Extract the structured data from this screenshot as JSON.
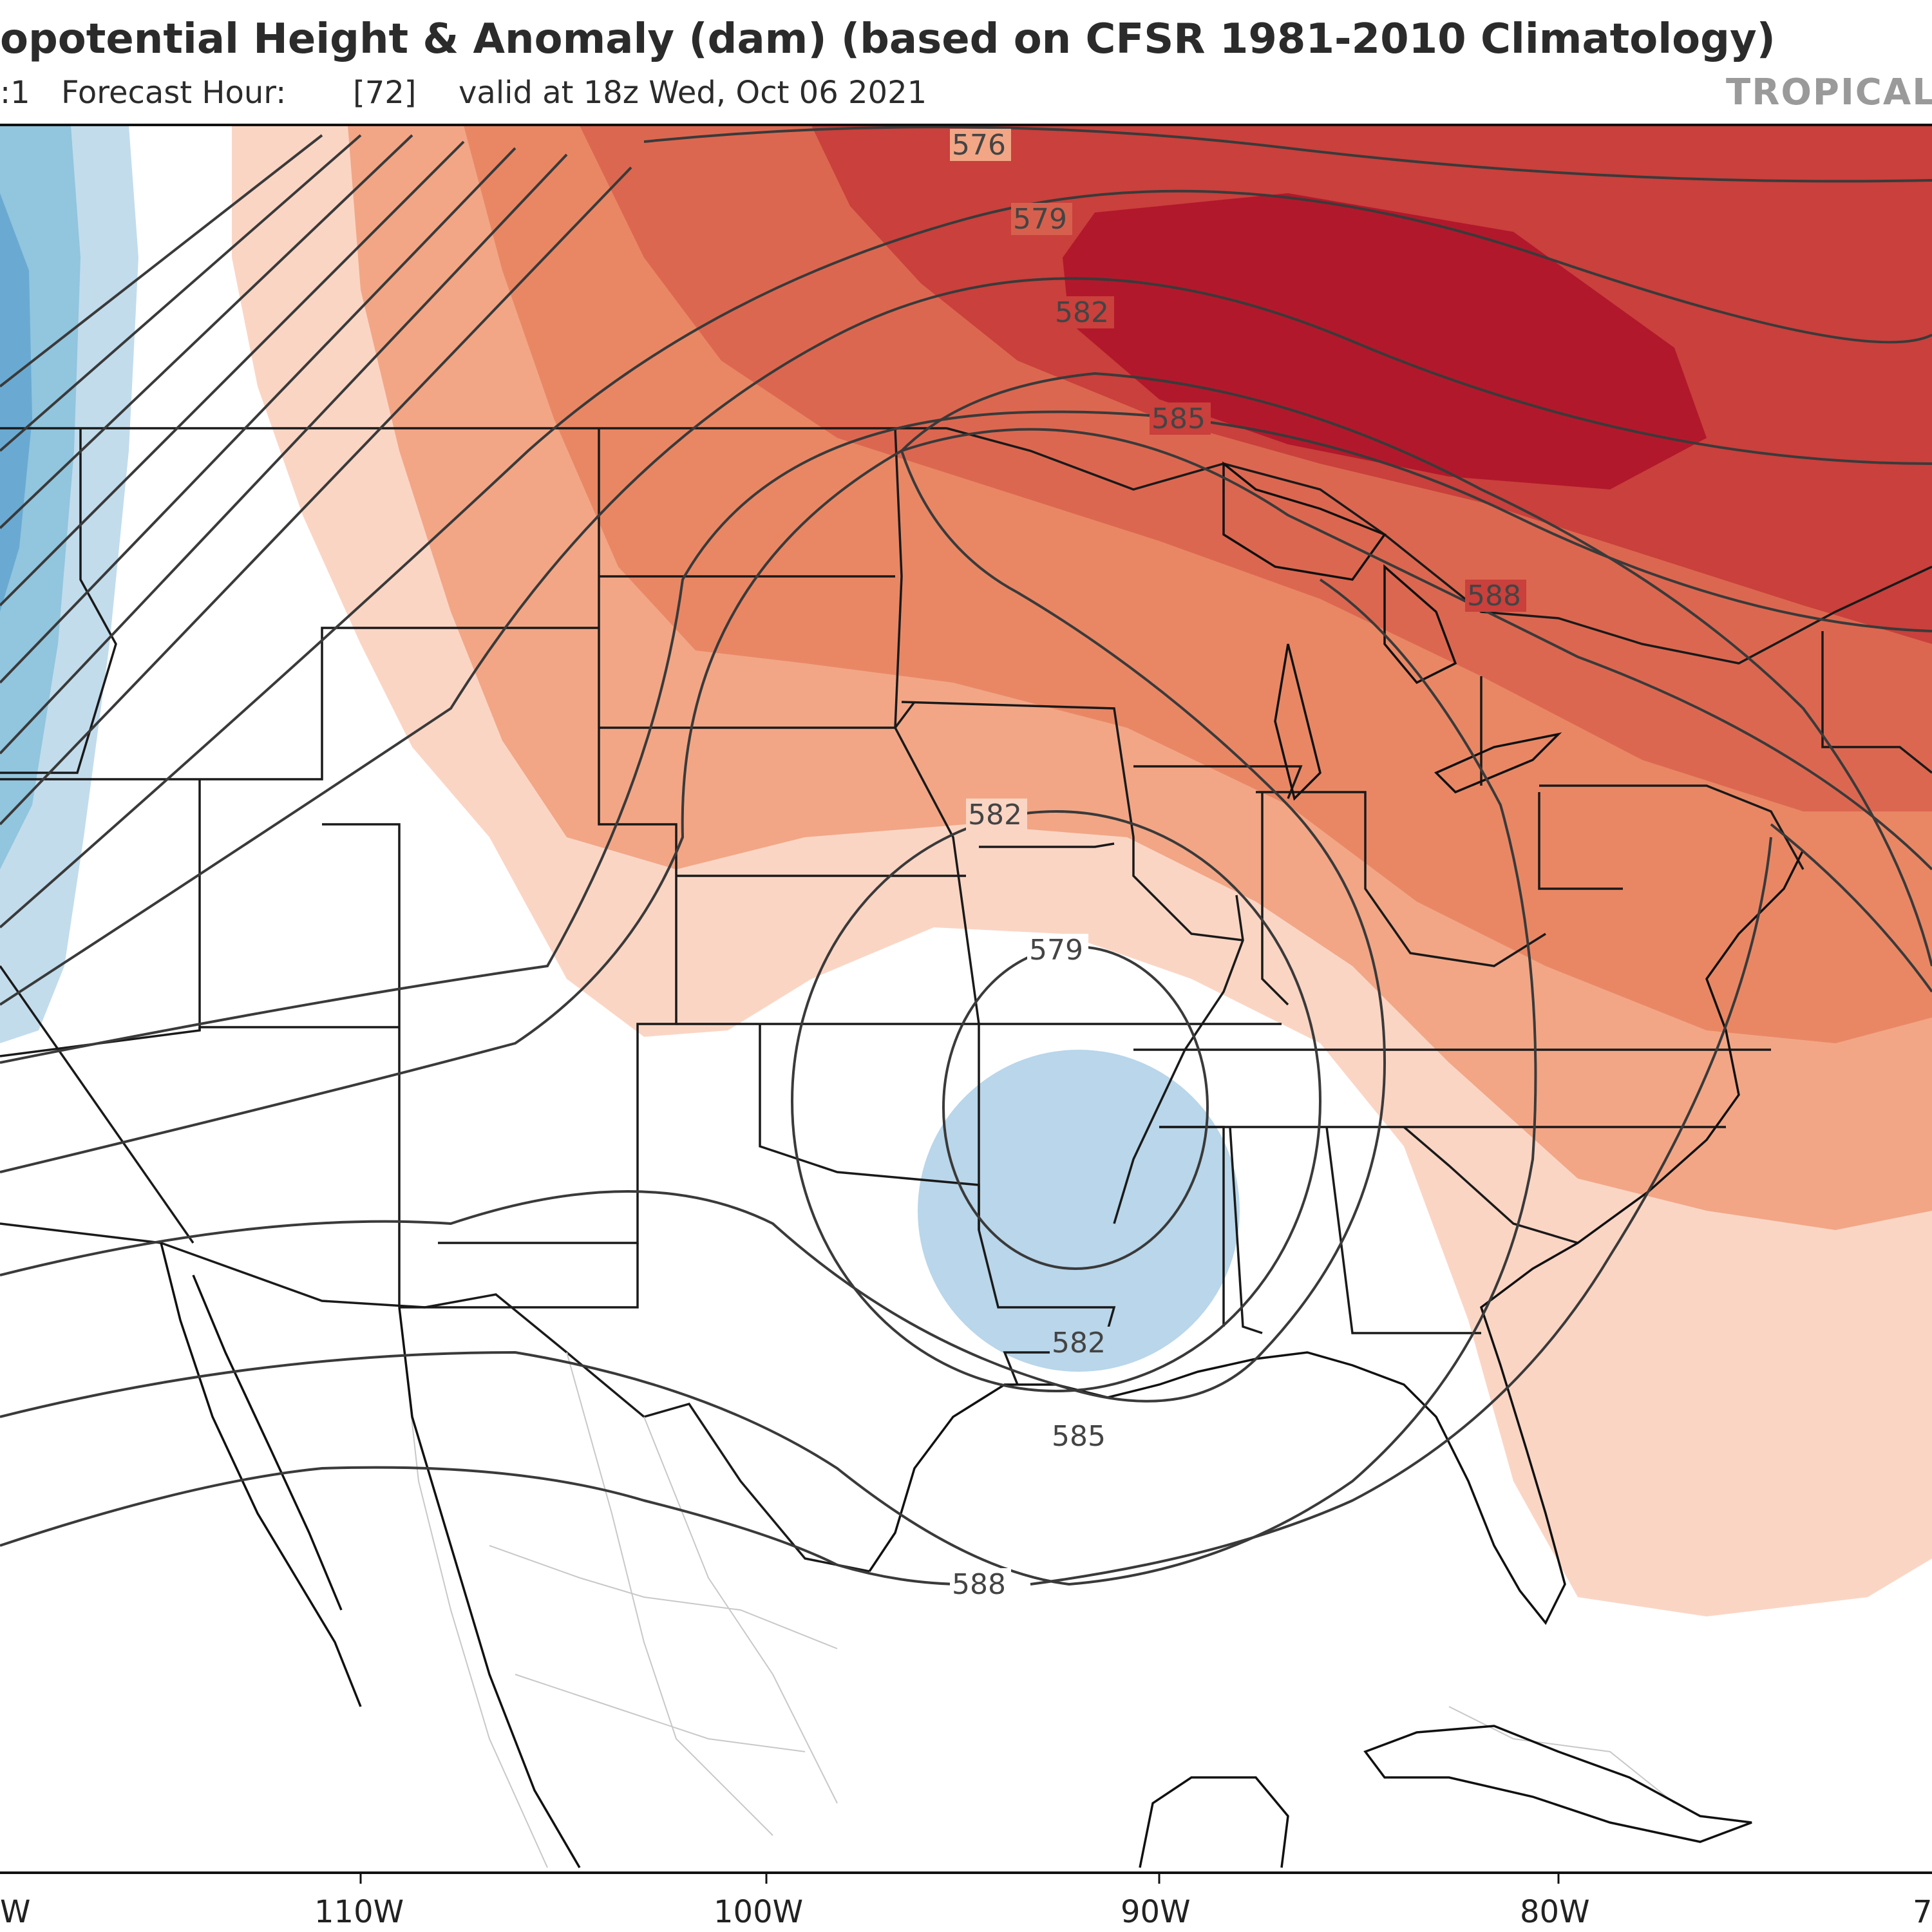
{
  "header": {
    "title": "opotential Height & Anomaly (dam) (based on CFSR 1981-2010 Climatology)",
    "run_prefix": ":1",
    "forecast_label": "Forecast Hour:",
    "forecast_hour": "[72]",
    "valid_text": "valid at 18z Wed, Oct 06 2021",
    "brand": "TROPICAL"
  },
  "axis": {
    "lon_labels": [
      "W",
      "110W",
      "100W",
      "90W",
      "80W",
      "7"
    ]
  },
  "contours": {
    "labels": [
      "576",
      "579",
      "582",
      "585",
      "588",
      "582",
      "579",
      "582",
      "585",
      "588"
    ]
  },
  "colors": {
    "anomaly_red_1": "#fbd5c4",
    "anomaly_red_2": "#f4a582",
    "anomaly_red_3": "#e68063",
    "anomaly_red_4": "#d6604d",
    "anomaly_red_5": "#c13b39",
    "anomaly_red_6": "#b2182b",
    "anomaly_blue_1": "#c2dcec",
    "anomaly_blue_2": "#92c5de",
    "anomaly_blue_3": "#5fa3cc"
  }
}
